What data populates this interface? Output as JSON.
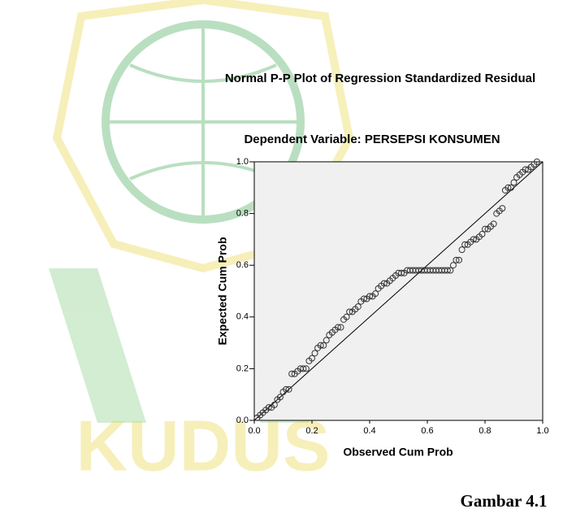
{
  "watermark": "KUDUS",
  "chart_data": {
    "type": "scatter",
    "title": "Normal P-P Plot of Regression Standardized Residual",
    "subtitle": "Dependent Variable: PERSEPSI KONSUMEN",
    "x_label": "Observed Cum Prob",
    "y_label": "Expected Cum Prob",
    "caption": "Gambar 4.1",
    "xlim": [
      0,
      1
    ],
    "ylim": [
      0,
      1
    ],
    "xticks": [
      {
        "value": 0,
        "label": "0.0"
      },
      0.2,
      0.4,
      0.6,
      0.8,
      {
        "value": 1,
        "label": "1.0"
      }
    ],
    "yticks": [
      {
        "value": 0,
        "label": "0.0"
      },
      0.2,
      0.4,
      0.6,
      0.8,
      {
        "value": 1,
        "label": "1.0"
      }
    ],
    "background": "#f0f0f0",
    "color": "#333333",
    "x": [
      0.01,
      0.02,
      0.03,
      0.04,
      0.05,
      0.06,
      0.07,
      0.08,
      0.09,
      0.1,
      0.11,
      0.12,
      0.13,
      0.14,
      0.15,
      0.16,
      0.17,
      0.18,
      0.19,
      0.2,
      0.21,
      0.22,
      0.23,
      0.24,
      0.25,
      0.26,
      0.27,
      0.28,
      0.29,
      0.3,
      0.31,
      0.32,
      0.33,
      0.34,
      0.35,
      0.36,
      0.37,
      0.38,
      0.39,
      0.4,
      0.41,
      0.42,
      0.43,
      0.44,
      0.45,
      0.46,
      0.47,
      0.48,
      0.49,
      0.5,
      0.51,
      0.52,
      0.53,
      0.54,
      0.55,
      0.56,
      0.57,
      0.58,
      0.59,
      0.6,
      0.61,
      0.62,
      0.63,
      0.64,
      0.65,
      0.66,
      0.67,
      0.68,
      0.69,
      0.7,
      0.71,
      0.72,
      0.73,
      0.74,
      0.75,
      0.76,
      0.77,
      0.78,
      0.79,
      0.8,
      0.81,
      0.82,
      0.83,
      0.84,
      0.85,
      0.86,
      0.87,
      0.88,
      0.89,
      0.9,
      0.91,
      0.92,
      0.93,
      0.94,
      0.95,
      0.96,
      0.97,
      0.98
    ],
    "values": [
      0.01,
      0.02,
      0.03,
      0.04,
      0.05,
      0.05,
      0.06,
      0.08,
      0.09,
      0.11,
      0.12,
      0.12,
      0.18,
      0.18,
      0.19,
      0.2,
      0.2,
      0.2,
      0.23,
      0.24,
      0.26,
      0.28,
      0.29,
      0.29,
      0.31,
      0.33,
      0.34,
      0.35,
      0.36,
      0.36,
      0.39,
      0.4,
      0.42,
      0.42,
      0.43,
      0.44,
      0.46,
      0.47,
      0.47,
      0.48,
      0.48,
      0.49,
      0.51,
      0.52,
      0.53,
      0.53,
      0.54,
      0.55,
      0.56,
      0.57,
      0.57,
      0.57,
      0.58,
      0.58,
      0.58,
      0.58,
      0.58,
      0.58,
      0.58,
      0.58,
      0.58,
      0.58,
      0.58,
      0.58,
      0.58,
      0.58,
      0.58,
      0.58,
      0.6,
      0.62,
      0.62,
      0.66,
      0.68,
      0.68,
      0.69,
      0.7,
      0.7,
      0.71,
      0.72,
      0.74,
      0.74,
      0.75,
      0.76,
      0.8,
      0.81,
      0.82,
      0.89,
      0.9,
      0.9,
      0.92,
      0.94,
      0.95,
      0.96,
      0.97,
      0.97,
      0.98,
      0.99,
      1.0
    ]
  }
}
